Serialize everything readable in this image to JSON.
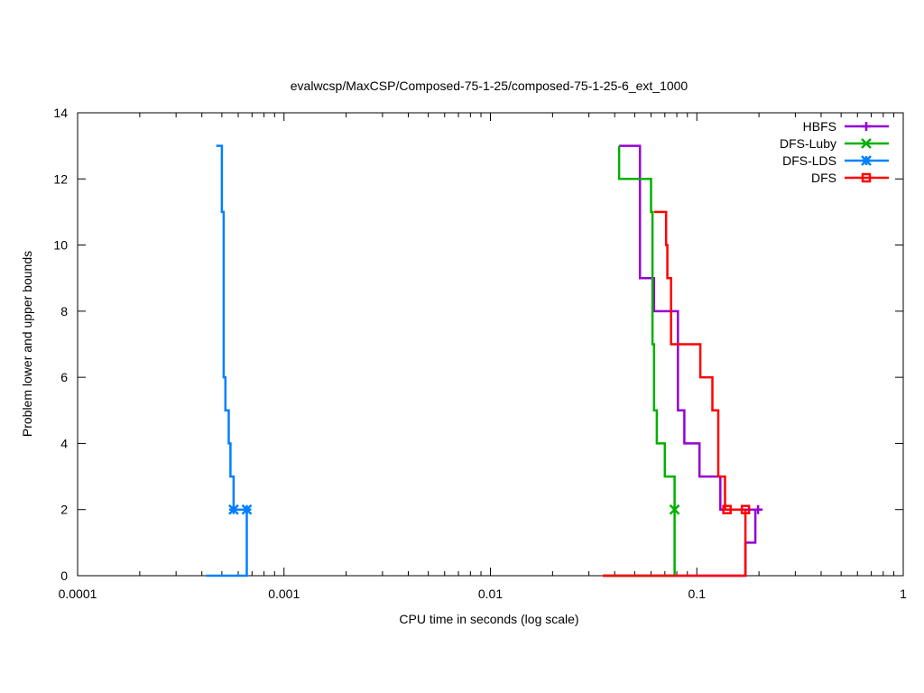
{
  "chart_data": {
    "type": "line",
    "title": "evalwcsp/MaxCSP/Composed-75-1-25/composed-75-1-25-6_ext_1000",
    "xlabel": "CPU time in seconds (log scale)",
    "ylabel": "Problem lower and upper bounds",
    "xscale": "log",
    "xlim": [
      0.0001,
      1
    ],
    "ylim": [
      0,
      14
    ],
    "xticks": [
      {
        "value": 0.0001,
        "label": "0.0001"
      },
      {
        "value": 0.001,
        "label": "0.001"
      },
      {
        "value": 0.01,
        "label": "0.01"
      },
      {
        "value": 0.1,
        "label": "0.1"
      },
      {
        "value": 1,
        "label": "1"
      }
    ],
    "yticks": [
      {
        "value": 0,
        "label": "0"
      },
      {
        "value": 2,
        "label": "2"
      },
      {
        "value": 4,
        "label": "4"
      },
      {
        "value": 6,
        "label": "6"
      },
      {
        "value": 8,
        "label": "8"
      },
      {
        "value": 10,
        "label": "10"
      },
      {
        "value": 12,
        "label": "12"
      },
      {
        "value": 14,
        "label": "14"
      }
    ],
    "grid": false,
    "legend_position": "top-right",
    "series": [
      {
        "name": "HBFS",
        "color": "#9400d3",
        "marker": "plus",
        "upper": [
          [
            0.042,
            13
          ],
          [
            0.053,
            13
          ],
          [
            0.053,
            9
          ],
          [
            0.062,
            9
          ],
          [
            0.062,
            8
          ],
          [
            0.081,
            8
          ],
          [
            0.081,
            5
          ],
          [
            0.087,
            5
          ],
          [
            0.087,
            4
          ],
          [
            0.103,
            4
          ],
          [
            0.103,
            3
          ],
          [
            0.13,
            3
          ],
          [
            0.13,
            2
          ],
          [
            0.198,
            2
          ]
        ],
        "lower": [
          [
            0.035,
            0
          ],
          [
            0.172,
            0
          ],
          [
            0.172,
            1
          ],
          [
            0.192,
            1
          ],
          [
            0.192,
            2
          ],
          [
            0.198,
            2
          ]
        ],
        "markers": [
          [
            0.198,
            2
          ]
        ]
      },
      {
        "name": "DFS-Luby",
        "color": "#00b000",
        "marker": "x",
        "upper": [
          [
            0.042,
            13
          ],
          [
            0.042,
            12
          ],
          [
            0.06,
            12
          ],
          [
            0.06,
            11
          ],
          [
            0.061,
            11
          ],
          [
            0.061,
            7
          ],
          [
            0.062,
            7
          ],
          [
            0.062,
            5
          ],
          [
            0.064,
            5
          ],
          [
            0.064,
            4
          ],
          [
            0.07,
            4
          ],
          [
            0.07,
            3
          ],
          [
            0.078,
            3
          ],
          [
            0.078,
            2
          ]
        ],
        "lower": [
          [
            0.035,
            0
          ],
          [
            0.078,
            0
          ],
          [
            0.078,
            2
          ]
        ],
        "markers": [
          [
            0.078,
            2
          ]
        ]
      },
      {
        "name": "DFS-LDS",
        "color": "#0080ff",
        "marker": "star",
        "upper": [
          [
            0.00047,
            13
          ],
          [
            0.0005,
            13
          ],
          [
            0.0005,
            11
          ],
          [
            0.00051,
            11
          ],
          [
            0.00051,
            6
          ],
          [
            0.00052,
            6
          ],
          [
            0.00052,
            5
          ],
          [
            0.00054,
            5
          ],
          [
            0.00054,
            4
          ],
          [
            0.00055,
            4
          ],
          [
            0.00055,
            3
          ],
          [
            0.00057,
            3
          ],
          [
            0.00057,
            2
          ],
          [
            0.00066,
            2
          ]
        ],
        "lower": [
          [
            0.00042,
            0
          ],
          [
            0.00066,
            0
          ],
          [
            0.00066,
            2
          ]
        ],
        "markers": [
          [
            0.00057,
            2
          ],
          [
            0.00066,
            2
          ]
        ]
      },
      {
        "name": "DFS",
        "color": "#ff0000",
        "marker": "square",
        "upper": [
          [
            0.062,
            11
          ],
          [
            0.071,
            11
          ],
          [
            0.071,
            10
          ],
          [
            0.072,
            10
          ],
          [
            0.072,
            9
          ],
          [
            0.075,
            9
          ],
          [
            0.075,
            7
          ],
          [
            0.081,
            7
          ],
          [
            0.081,
            7
          ],
          [
            0.104,
            7
          ],
          [
            0.104,
            6
          ],
          [
            0.119,
            6
          ],
          [
            0.119,
            5
          ],
          [
            0.127,
            5
          ],
          [
            0.127,
            3
          ],
          [
            0.137,
            3
          ],
          [
            0.137,
            2
          ],
          [
            0.172,
            2
          ]
        ],
        "lower": [
          [
            0.035,
            0
          ],
          [
            0.172,
            0
          ],
          [
            0.172,
            2
          ]
        ],
        "markers": [
          [
            0.14,
            2
          ],
          [
            0.172,
            2
          ]
        ]
      }
    ]
  }
}
